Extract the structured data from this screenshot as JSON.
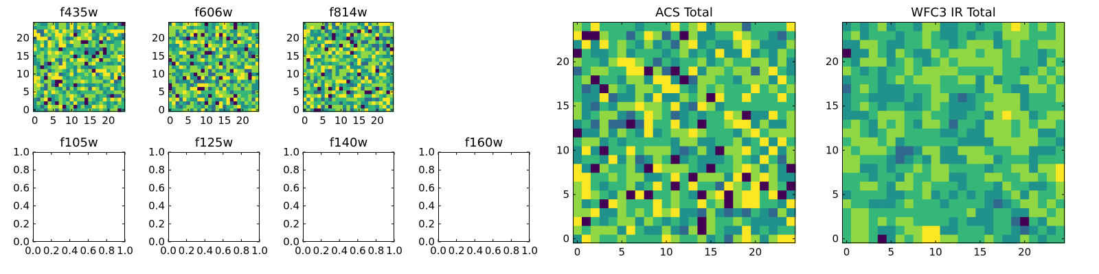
{
  "chart_data": {
    "type": "heatmap",
    "colormap": [
      "#440154",
      "#31688e",
      "#21918c",
      "#35b779",
      "#90d743",
      "#fde725"
    ],
    "grid_size": 25,
    "panels": [
      {
        "title": "f435w",
        "kind": "image",
        "xticks": [
          0,
          5,
          10,
          15,
          20
        ],
        "yticks": [
          0,
          5,
          10,
          15,
          20
        ],
        "xlim": [
          -0.5,
          24.5
        ],
        "ylim": [
          -0.5,
          24.5
        ],
        "seed": 11,
        "smooth": 0
      },
      {
        "title": "f606w",
        "kind": "image",
        "xticks": [
          0,
          5,
          10,
          15,
          20
        ],
        "yticks": [
          0,
          5,
          10,
          15,
          20
        ],
        "xlim": [
          -0.5,
          24.5
        ],
        "ylim": [
          -0.5,
          24.5
        ],
        "seed": 23,
        "smooth": 0
      },
      {
        "title": "f814w",
        "kind": "image",
        "xticks": [
          0,
          5,
          10,
          15,
          20
        ],
        "yticks": [
          0,
          5,
          10,
          15,
          20
        ],
        "xlim": [
          -0.5,
          24.5
        ],
        "ylim": [
          -0.5,
          24.5
        ],
        "seed": 37,
        "smooth": 0
      },
      {
        "title": "f105w",
        "kind": "empty",
        "xticks": [
          "0.0",
          "0.2",
          "0.4",
          "0.6",
          "0.8",
          "1.0"
        ],
        "yticks": [
          "0.0",
          "0.2",
          "0.4",
          "0.6",
          "0.8",
          "1.0"
        ],
        "xlim": [
          0,
          1
        ],
        "ylim": [
          0,
          1
        ]
      },
      {
        "title": "f125w",
        "kind": "empty",
        "xticks": [
          "0.0",
          "0.2",
          "0.4",
          "0.6",
          "0.8",
          "1.0"
        ],
        "yticks": [
          "0.0",
          "0.2",
          "0.4",
          "0.6",
          "0.8",
          "1.0"
        ],
        "xlim": [
          0,
          1
        ],
        "ylim": [
          0,
          1
        ]
      },
      {
        "title": "f140w",
        "kind": "empty",
        "xticks": [
          "0.0",
          "0.2",
          "0.4",
          "0.6",
          "0.8",
          "1.0"
        ],
        "yticks": [
          "0.0",
          "0.2",
          "0.4",
          "0.6",
          "0.8",
          "1.0"
        ],
        "xlim": [
          0,
          1
        ],
        "ylim": [
          0,
          1
        ]
      },
      {
        "title": "f160w",
        "kind": "empty",
        "xticks": [
          "0.0",
          "0.2",
          "0.4",
          "0.6",
          "0.8",
          "1.0"
        ],
        "yticks": [
          "0.0",
          "0.2",
          "0.4",
          "0.6",
          "0.8",
          "1.0"
        ],
        "xlim": [
          0,
          1
        ],
        "ylim": [
          0,
          1
        ]
      },
      {
        "title": "ACS Total",
        "kind": "image",
        "xticks": [
          0,
          5,
          10,
          15,
          20
        ],
        "yticks": [
          0,
          5,
          10,
          15,
          20
        ],
        "xlim": [
          -0.5,
          24.5
        ],
        "ylim": [
          -0.5,
          24.5
        ],
        "seed": 51,
        "smooth": 0
      },
      {
        "title": "WFC3 IR Total",
        "kind": "image",
        "xticks": [
          0,
          5,
          10,
          15,
          20
        ],
        "yticks": [
          0,
          5,
          10,
          15,
          20
        ],
        "xlim": [
          -0.5,
          24.5
        ],
        "ylim": [
          -0.5,
          24.5
        ],
        "seed": 73,
        "smooth": 1
      }
    ]
  }
}
